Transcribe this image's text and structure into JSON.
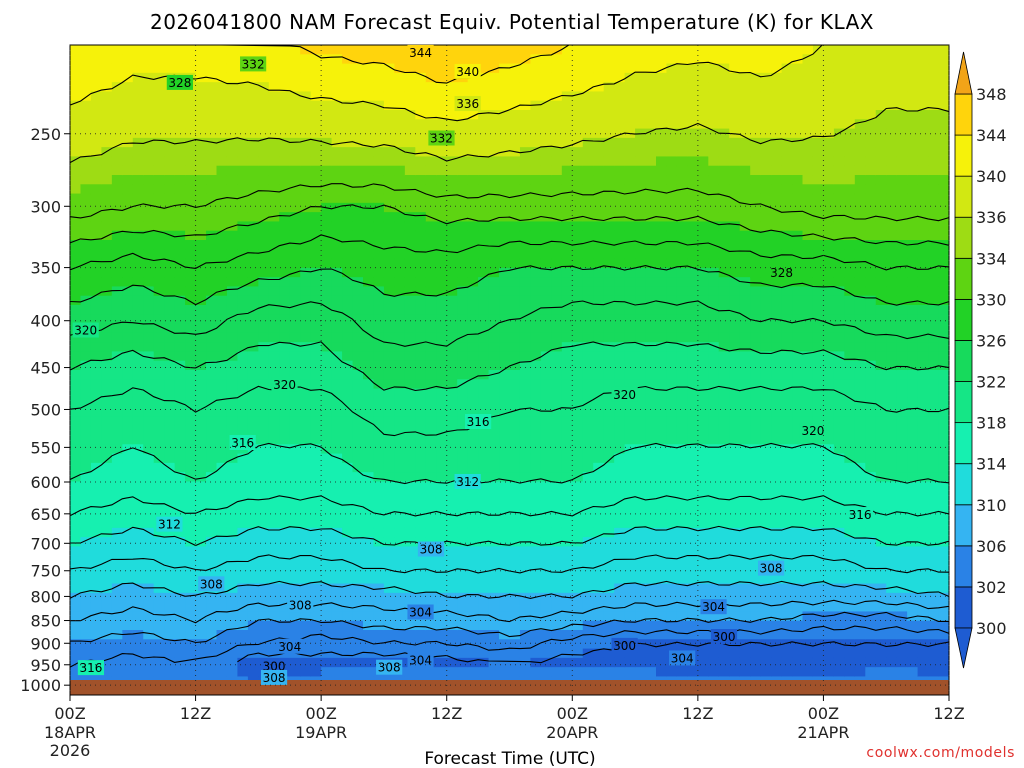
{
  "chart_data": {
    "type": "heatmap",
    "title": "2026041800 NAM Forecast Equiv. Potential Temperature (K) for KLAX",
    "xlabel": "Forecast Time (UTC)",
    "ylabel": "",
    "x_ticks": [
      {
        "label": "00Z",
        "sub": "18APR",
        "sub2": "2026",
        "hours": 0
      },
      {
        "label": "12Z",
        "hours": 12
      },
      {
        "label": "00Z",
        "sub": "19APR",
        "hours": 24
      },
      {
        "label": "12Z",
        "hours": 36
      },
      {
        "label": "00Z",
        "sub": "20APR",
        "hours": 48
      },
      {
        "label": "12Z",
        "hours": 60
      },
      {
        "label": "00Z",
        "sub": "21APR",
        "hours": 72
      },
      {
        "label": "12Z",
        "hours": 84
      }
    ],
    "xlim": [
      0,
      84
    ],
    "y_ticks": [
      250,
      300,
      350,
      400,
      450,
      500,
      550,
      600,
      650,
      700,
      750,
      800,
      850,
      900,
      950,
      1000
    ],
    "y_axis": "pressure (hPa), log scale, decreasing upward",
    "ylim": [
      1025,
      200
    ],
    "colorbar": {
      "levels": [
        300,
        302,
        306,
        310,
        314,
        318,
        322,
        326,
        330,
        334,
        336,
        340,
        344,
        348
      ],
      "colors": [
        "#1e5cd2",
        "#2a82e6",
        "#35b4f2",
        "#20dcdc",
        "#16f0b0",
        "#15e686",
        "#17da5c",
        "#22d226",
        "#5ed412",
        "#9edc14",
        "#d2e812",
        "#f6f20a",
        "#ffd40c",
        "#f2a418"
      ],
      "top_color": "#f2a418",
      "bottom_color": "#1e5cd2"
    },
    "bands_legend": "field values (K) by pressure level; columns = forecast hour",
    "contour_labels": [
      {
        "text": "344",
        "h": 33.5,
        "p": 204
      },
      {
        "text": "332",
        "h": 17.5,
        "p": 210
      },
      {
        "text": "340",
        "h": 38,
        "p": 214
      },
      {
        "text": "328",
        "h": 10.5,
        "p": 220
      },
      {
        "text": "336",
        "h": 38,
        "p": 232
      },
      {
        "text": "332",
        "h": 35.5,
        "p": 253
      },
      {
        "text": "328",
        "h": 68,
        "p": 355
      },
      {
        "text": "320",
        "h": 1.5,
        "p": 410
      },
      {
        "text": "320",
        "h": 20.5,
        "p": 470
      },
      {
        "text": "320",
        "h": 53,
        "p": 482
      },
      {
        "text": "316",
        "h": 39,
        "p": 516
      },
      {
        "text": "320",
        "h": 71,
        "p": 528
      },
      {
        "text": "316",
        "h": 16.5,
        "p": 544
      },
      {
        "text": "312",
        "h": 38,
        "p": 600
      },
      {
        "text": "316",
        "h": 75.5,
        "p": 652
      },
      {
        "text": "312",
        "h": 9.5,
        "p": 668
      },
      {
        "text": "308",
        "h": 34.5,
        "p": 711
      },
      {
        "text": "308",
        "h": 67,
        "p": 746
      },
      {
        "text": "308",
        "h": 13.5,
        "p": 776
      },
      {
        "text": "308",
        "h": 22,
        "p": 818
      },
      {
        "text": "304",
        "h": 33.5,
        "p": 833
      },
      {
        "text": "304",
        "h": 61.5,
        "p": 822
      },
      {
        "text": "300",
        "h": 62.5,
        "p": 886
      },
      {
        "text": "300",
        "h": 53,
        "p": 906
      },
      {
        "text": "304",
        "h": 21,
        "p": 908
      },
      {
        "text": "304",
        "h": 58.5,
        "p": 935
      },
      {
        "text": "304",
        "h": 33.5,
        "p": 940
      },
      {
        "text": "300",
        "h": 19.5,
        "p": 954
      },
      {
        "text": "308",
        "h": 30.5,
        "p": 957
      },
      {
        "text": "316",
        "h": 2,
        "p": 958
      },
      {
        "text": "308",
        "h": 19.5,
        "p": 982
      }
    ],
    "columns": [
      {
        "h": 0,
        "v": [
          303,
          304,
          306,
          308,
          310,
          312,
          314,
          316,
          318,
          320,
          322,
          325,
          328,
          333,
          344
        ]
      },
      {
        "h": 6,
        "v": [
          304,
          303,
          305,
          307,
          309,
          311,
          313,
          315,
          317,
          319,
          321,
          324,
          327,
          332,
          342
        ]
      },
      {
        "h": 12,
        "v": [
          306,
          304,
          306,
          308,
          310,
          312,
          314,
          316,
          318,
          320,
          322,
          325,
          328,
          332,
          342
        ]
      },
      {
        "h": 18,
        "v": [
          302,
          300,
          304,
          306,
          309,
          311,
          313,
          315,
          317,
          319,
          321,
          323,
          327,
          331,
          343
        ]
      },
      {
        "h": 24,
        "v": [
          304,
          301,
          303,
          306,
          309,
          311,
          313,
          315,
          317,
          319,
          321,
          323,
          326,
          330,
          345
        ]
      },
      {
        "h": 30,
        "v": [
          306,
          300,
          304,
          307,
          309,
          312,
          314,
          316,
          318,
          321,
          323,
          325,
          327,
          330,
          346
        ]
      },
      {
        "h": 36,
        "v": [
          305,
          301,
          304,
          307,
          310,
          312,
          314,
          316,
          318,
          321,
          323,
          325,
          327,
          331,
          348
        ]
      },
      {
        "h": 42,
        "v": [
          304,
          302,
          305,
          308,
          310,
          312,
          314,
          316,
          318,
          320,
          322,
          324,
          326,
          331,
          346
        ]
      },
      {
        "h": 48,
        "v": [
          305,
          301,
          303,
          307,
          310,
          312,
          314,
          316,
          318,
          320,
          321,
          323,
          326,
          331,
          344
        ]
      },
      {
        "h": 54,
        "v": [
          305,
          301,
          302,
          306,
          309,
          311,
          313,
          315,
          317,
          319,
          321,
          323,
          326,
          331,
          342
        ]
      },
      {
        "h": 60,
        "v": [
          304,
          300,
          302,
          306,
          309,
          311,
          313,
          315,
          317,
          319,
          321,
          323,
          326,
          331,
          341
        ]
      },
      {
        "h": 66,
        "v": [
          305,
          300,
          302,
          306,
          309,
          311,
          313,
          315,
          317,
          319,
          321,
          324,
          327,
          332,
          342
        ]
      },
      {
        "h": 72,
        "v": [
          304,
          300,
          302,
          305,
          309,
          311,
          313,
          315,
          317,
          319,
          321,
          324,
          327,
          333,
          340
        ]
      },
      {
        "h": 78,
        "v": [
          305,
          301,
          302,
          305,
          309,
          312,
          314,
          316,
          318,
          320,
          322,
          325,
          328,
          333,
          338
        ]
      },
      {
        "h": 84,
        "v": [
          305,
          300,
          302,
          306,
          310,
          312,
          314,
          316,
          318,
          320,
          322,
          325,
          328,
          333,
          338
        ]
      }
    ],
    "column_levels": [
      1000,
      950,
      900,
      850,
      800,
      750,
      700,
      650,
      600,
      500,
      450,
      400,
      350,
      300,
      200
    ],
    "surface_color": "#a1522a",
    "grid": true
  },
  "credit": "coolwx.com/models"
}
